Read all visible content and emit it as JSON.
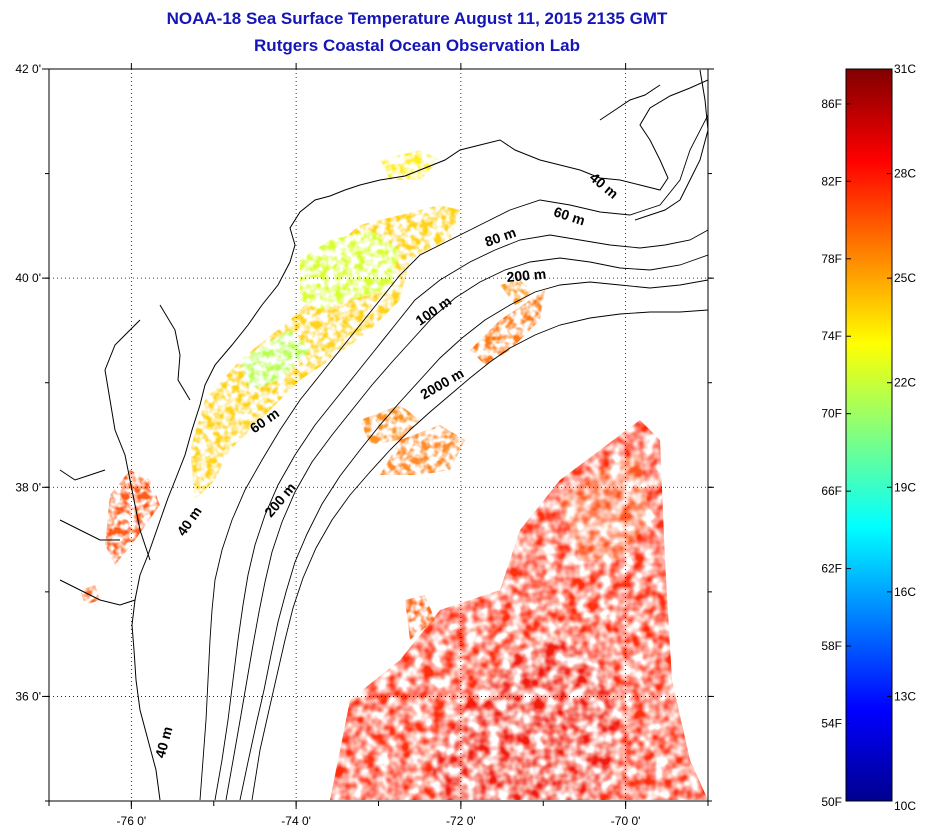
{
  "title": {
    "line1": "NOAA-18 Sea Surface Temperature August 11, 2015 2135 GMT",
    "line2": "Rutgers Coastal Ocean Observation Lab"
  },
  "map": {
    "lon_range": [
      -77.0,
      -69.0
    ],
    "lat_range": [
      35.0,
      42.0
    ],
    "lon_ticks": [
      {
        "value": -76,
        "label": "-76 0'"
      },
      {
        "value": -74,
        "label": "-74 0'"
      },
      {
        "value": -72,
        "label": "-72 0'"
      },
      {
        "value": -70,
        "label": "-70 0'"
      }
    ],
    "lat_ticks": [
      {
        "value": 42,
        "label": "42 0'"
      },
      {
        "value": 40,
        "label": "40 0'"
      },
      {
        "value": 38,
        "label": "38 0'"
      },
      {
        "value": 36,
        "label": "36 0'"
      }
    ],
    "grid": "dotted",
    "depth_labels": [
      {
        "text": "40 m",
        "lon": -70.3,
        "lat": 40.85,
        "rotate": 40
      },
      {
        "text": "60 m",
        "lon": -70.7,
        "lat": 40.55,
        "rotate": 18
      },
      {
        "text": "80 m",
        "lon": -71.5,
        "lat": 40.35,
        "rotate": -20
      },
      {
        "text": "200 m",
        "lon": -71.2,
        "lat": 39.98,
        "rotate": -5
      },
      {
        "text": "100 m",
        "lon": -72.3,
        "lat": 39.65,
        "rotate": -35
      },
      {
        "text": "2000 m",
        "lon": -72.2,
        "lat": 38.95,
        "rotate": -30
      },
      {
        "text": "60 m",
        "lon": -74.35,
        "lat": 38.6,
        "rotate": -35
      },
      {
        "text": "200 m",
        "lon": -74.15,
        "lat": 37.85,
        "rotate": -50
      },
      {
        "text": "40 m",
        "lon": -75.25,
        "lat": 37.65,
        "rotate": -55
      },
      {
        "text": "40 m",
        "lon": -75.55,
        "lat": 35.55,
        "rotate": -75
      }
    ]
  },
  "colorbar": {
    "range_c": [
      10,
      31
    ],
    "fahrenheit_ticks": [
      "50F",
      "54F",
      "58F",
      "62F",
      "66F",
      "70F",
      "74F",
      "78F",
      "82F",
      "86F"
    ],
    "celsius_ticks": [
      "10C",
      "13C",
      "16C",
      "19C",
      "22C",
      "25C",
      "28C",
      "31C"
    ],
    "colormap": "jet",
    "colors": [
      "#00008f",
      "#0000ff",
      "#0080ff",
      "#00ffff",
      "#80ff80",
      "#ffff00",
      "#ff8000",
      "#ff0000",
      "#800000"
    ]
  }
}
